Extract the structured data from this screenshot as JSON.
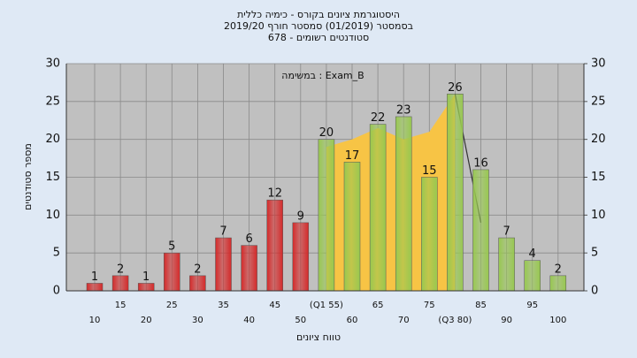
{
  "chart_data": {
    "type": "bar",
    "title": "היסטוגרמת ציונים בקורס - כימיה כללית",
    "subtitle": "בסמסטר  (01/2019)  סמסטר חורף 2019/20",
    "subtitle2": "סטודנטים רשומים - 678",
    "annotation": "במשימה : Exam_B",
    "x_label": "טווח ציונים",
    "y_label": "מספר סטודנטים",
    "categories": [
      "10",
      "15",
      "20",
      "25",
      "30",
      "35",
      "40",
      "45",
      "50",
      "(Q1 55)",
      "60",
      "65",
      "70",
      "75",
      "(Q3 80)",
      "85",
      "90",
      "95",
      "100"
    ],
    "values": [
      1,
      2,
      1,
      5,
      2,
      7,
      6,
      12,
      9,
      20,
      17,
      22,
      23,
      15,
      26,
      16,
      7,
      4,
      2
    ],
    "colors": [
      "#d42a2a",
      "#d42a2a",
      "#d42a2a",
      "#d42a2a",
      "#d42a2a",
      "#d42a2a",
      "#d42a2a",
      "#d42a2a",
      "#d42a2a",
      "#98c850",
      "#98c850",
      "#98c850",
      "#98c850",
      "#98c850",
      "#98c850",
      "#98c850",
      "#98c850",
      "#98c850",
      "#98c850"
    ],
    "area": {
      "color": "#f7c445",
      "values": [
        null,
        null,
        null,
        null,
        null,
        null,
        null,
        null,
        null,
        19,
        20,
        21.5,
        20,
        21,
        26,
        null,
        null,
        null,
        null
      ]
    },
    "line": {
      "color": "#333333",
      "values": [
        null,
        null,
        null,
        null,
        null,
        null,
        null,
        null,
        null,
        null,
        null,
        null,
        null,
        null,
        26,
        9,
        null,
        null,
        null
      ]
    },
    "ylim": [
      0,
      30
    ],
    "yticks": [
      0,
      5,
      10,
      15,
      20,
      25,
      30
    ],
    "y2lim": [
      0,
      30
    ],
    "y2ticks": [
      0,
      5,
      10,
      15,
      20,
      25,
      30
    ],
    "grid": true
  }
}
